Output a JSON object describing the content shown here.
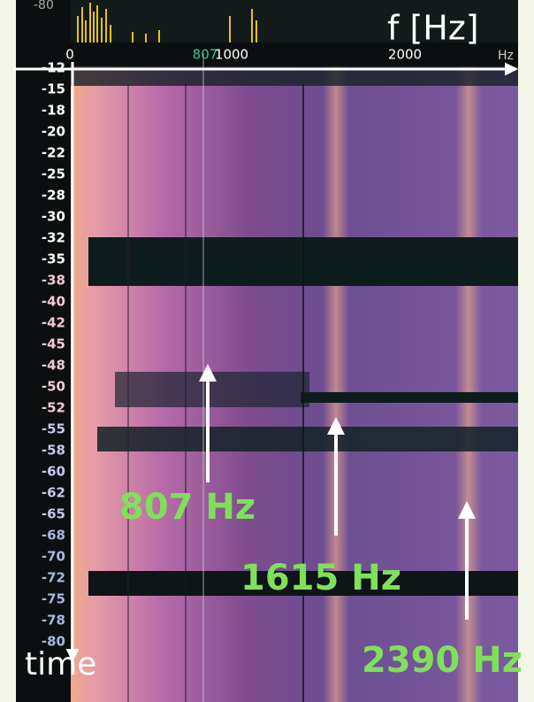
{
  "top_strip": {
    "label": "-80"
  },
  "x_axis": {
    "title": "f [Hz]",
    "unit": "Hz",
    "ticks": [
      "0",
      "807",
      "1000",
      "2000"
    ]
  },
  "y_axis": {
    "title": "time",
    "ticks": [
      "-12",
      "-15",
      "-18",
      "-20",
      "-22",
      "-25",
      "-28",
      "-30",
      "-32",
      "-35",
      "-38",
      "-40",
      "-42",
      "-45",
      "-48",
      "-50",
      "-52",
      "-55",
      "-58",
      "-60",
      "-62",
      "-65",
      "-68",
      "-70",
      "-72",
      "-75",
      "-78",
      "-80"
    ]
  },
  "annotations": [
    "807 Hz",
    "1615 Hz",
    "2390 Hz"
  ]
}
